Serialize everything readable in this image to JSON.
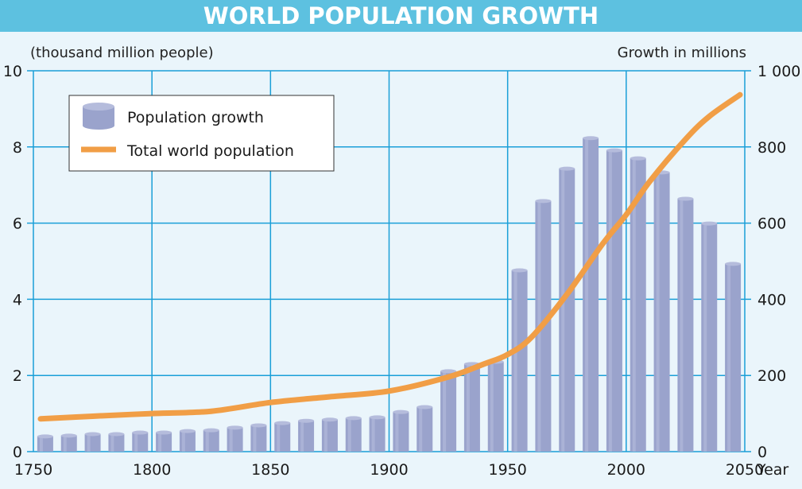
{
  "chart_data": {
    "type": "bar+line",
    "title": "WORLD POPULATION GROWTH",
    "ylabel_left": "(thousand million people)",
    "ylabel_right": "Growth in millions",
    "xlabel": "Year",
    "xlim": [
      1750,
      2050
    ],
    "ylim_left": [
      0,
      10
    ],
    "ylim_right": [
      0,
      1000
    ],
    "x_ticks": [
      "1750",
      "1800",
      "1850",
      "1900",
      "1950",
      "2000",
      "2050"
    ],
    "y_ticks_left": [
      "0",
      "2",
      "4",
      "6",
      "8",
      "10"
    ],
    "y_ticks_right": [
      "0",
      "200",
      "400",
      "600",
      "800",
      "1 000"
    ],
    "grid": true,
    "legend_position": "top-left",
    "colors": {
      "bars": "#9aa3cc",
      "line": "#f19e46",
      "grid": "#1a9fd8",
      "title_bg": "#5dc1e0"
    },
    "series": [
      {
        "name": "Population growth",
        "type": "bar",
        "axis": "right",
        "x": [
          1755,
          1765,
          1775,
          1785,
          1795,
          1805,
          1815,
          1825,
          1835,
          1845,
          1855,
          1865,
          1875,
          1885,
          1895,
          1905,
          1915,
          1925,
          1935,
          1945,
          1955,
          1965,
          1975,
          1985,
          1995,
          2005,
          2015,
          2025,
          2035,
          2045
        ],
        "values": [
          40,
          42,
          46,
          46,
          50,
          50,
          54,
          56,
          63,
          69,
          75,
          81,
          84,
          88,
          90,
          104,
          117,
          211,
          230,
          236,
          476,
          658,
          743,
          823,
          791,
          770,
          733,
          664,
          599,
          493
        ]
      },
      {
        "name": "Total world population",
        "type": "line",
        "axis": "left",
        "x": [
          1753,
          1775,
          1800,
          1825,
          1850,
          1875,
          1900,
          1925,
          1940,
          1950,
          1960,
          1975,
          1990,
          2000,
          2010,
          2025,
          2035,
          2048
        ],
        "values": [
          0.86,
          0.93,
          1.0,
          1.06,
          1.29,
          1.44,
          1.59,
          1.96,
          2.3,
          2.55,
          3.0,
          4.13,
          5.45,
          6.22,
          7.1,
          8.2,
          8.8,
          9.37
        ]
      }
    ]
  }
}
